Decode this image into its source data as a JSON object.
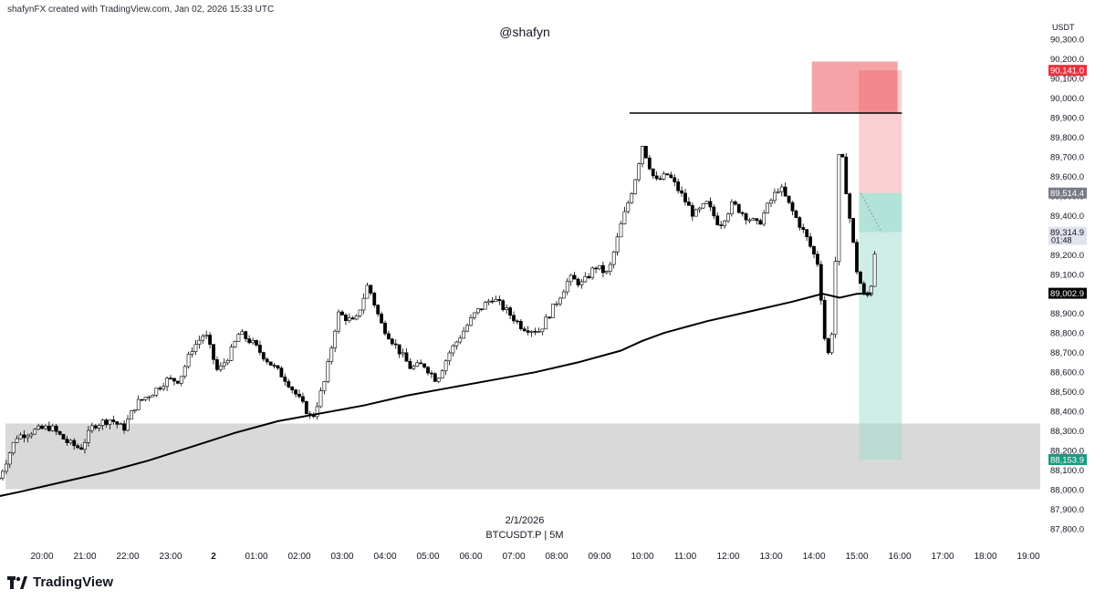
{
  "header": {
    "created_by": "shafynFX created with TradingView.com, Jan 02, 2026 15:33 UTC",
    "watermark": "@shafyn",
    "date_label": "2/1/2026",
    "symbol_label": "BTCUSDT.P | 5M",
    "brand": "TradingView",
    "unit": "USDT"
  },
  "colors": {
    "up": "#ffffff",
    "down": "#000000",
    "wick": "#000000",
    "ma": "#000000",
    "zone": "#d9d9d9",
    "stop_zone": "#f5a0aa",
    "target_zone": "#9fdccf",
    "label_red": "#e8323c",
    "label_gray": "#787b86",
    "label_green": "#1d9a80"
  },
  "chart_data": {
    "type": "candlestick",
    "symbol": "BTCUSDT.P",
    "timeframe": "5M",
    "y_ticks": [
      90300,
      90200,
      90100,
      90000,
      89900,
      89800,
      89700,
      89600,
      89500,
      89400,
      89300,
      89200,
      89100,
      89000,
      88900,
      88800,
      88700,
      88600,
      88500,
      88400,
      88300,
      88200,
      88100,
      88000,
      87900,
      87800
    ],
    "y_tick_labels": [
      "90,300.0",
      "90,200.0",
      "90,100.0",
      "90,000.0",
      "89,900.0",
      "89,800.0",
      "89,700.0",
      "89,600.0",
      "89,500.0",
      "89,400.0",
      "89,300.0",
      "89,200.0",
      "89,100.0",
      "89,000.0",
      "88,900.0",
      "88,800.0",
      "88,700.0",
      "88,600.0",
      "88,500.0",
      "88,400.0",
      "88,300.0",
      "88,200.0",
      "88,100.0",
      "88,000.0",
      "87,900.0",
      "87,800.0"
    ],
    "x_ticks": [
      "20:00",
      "21:00",
      "22:00",
      "23:00",
      "2",
      "01:00",
      "02:00",
      "03:00",
      "04:00",
      "05:00",
      "06:00",
      "07:00",
      "08:00",
      "09:00",
      "10:00",
      "11:00",
      "12:00",
      "13:00",
      "14:00",
      "15:00",
      "16:00",
      "17:00",
      "18:00",
      "19:00"
    ],
    "hour_anchors": [
      {
        "h": 19.0,
        "p": 88060
      },
      {
        "h": 19.4,
        "p": 88270
      },
      {
        "h": 19.8,
        "p": 88300
      },
      {
        "h": 20.2,
        "p": 88320
      },
      {
        "h": 20.6,
        "p": 88240
      },
      {
        "h": 20.9,
        "p": 88210
      },
      {
        "h": 21.2,
        "p": 88330
      },
      {
        "h": 21.6,
        "p": 88360
      },
      {
        "h": 21.9,
        "p": 88310
      },
      {
        "h": 22.2,
        "p": 88440
      },
      {
        "h": 22.6,
        "p": 88500
      },
      {
        "h": 22.9,
        "p": 88560
      },
      {
        "h": 23.2,
        "p": 88560
      },
      {
        "h": 23.5,
        "p": 88720
      },
      {
        "h": 23.8,
        "p": 88800
      },
      {
        "h": 24.1,
        "p": 88600
      },
      {
        "h": 24.4,
        "p": 88700
      },
      {
        "h": 24.6,
        "p": 88800
      },
      {
        "h": 24.9,
        "p": 88750
      },
      {
        "h": 25.3,
        "p": 88650
      },
      {
        "h": 25.7,
        "p": 88560
      },
      {
        "h": 26.0,
        "p": 88460
      },
      {
        "h": 26.3,
        "p": 88360
      },
      {
        "h": 26.6,
        "p": 88560
      },
      {
        "h": 26.9,
        "p": 88900
      },
      {
        "h": 27.3,
        "p": 88850
      },
      {
        "h": 27.6,
        "p": 89050
      },
      {
        "h": 27.9,
        "p": 88850
      },
      {
        "h": 28.2,
        "p": 88750
      },
      {
        "h": 28.6,
        "p": 88620
      },
      {
        "h": 28.9,
        "p": 88640
      },
      {
        "h": 29.2,
        "p": 88560
      },
      {
        "h": 29.5,
        "p": 88700
      },
      {
        "h": 29.8,
        "p": 88800
      },
      {
        "h": 30.1,
        "p": 88900
      },
      {
        "h": 30.5,
        "p": 88980
      },
      {
        "h": 30.8,
        "p": 88920
      },
      {
        "h": 31.2,
        "p": 88830
      },
      {
        "h": 31.6,
        "p": 88810
      },
      {
        "h": 32.0,
        "p": 88960
      },
      {
        "h": 32.3,
        "p": 89080
      },
      {
        "h": 32.6,
        "p": 89050
      },
      {
        "h": 32.9,
        "p": 89140
      },
      {
        "h": 33.2,
        "p": 89100
      },
      {
        "h": 33.5,
        "p": 89350
      },
      {
        "h": 33.8,
        "p": 89560
      },
      {
        "h": 34.0,
        "p": 89760
      },
      {
        "h": 34.3,
        "p": 89570
      },
      {
        "h": 34.6,
        "p": 89610
      },
      {
        "h": 34.9,
        "p": 89510
      },
      {
        "h": 35.2,
        "p": 89400
      },
      {
        "h": 35.5,
        "p": 89460
      },
      {
        "h": 35.8,
        "p": 89350
      },
      {
        "h": 36.1,
        "p": 89460
      },
      {
        "h": 36.4,
        "p": 89400
      },
      {
        "h": 36.7,
        "p": 89350
      },
      {
        "h": 36.9,
        "p": 89440
      },
      {
        "h": 37.2,
        "p": 89550
      },
      {
        "h": 37.5,
        "p": 89420
      },
      {
        "h": 37.8,
        "p": 89300
      },
      {
        "h": 38.1,
        "p": 89150
      },
      {
        "h": 38.3,
        "p": 88650
      },
      {
        "h": 38.45,
        "p": 88850
      },
      {
        "h": 38.6,
        "p": 89800
      },
      {
        "h": 38.8,
        "p": 89440
      },
      {
        "h": 39.0,
        "p": 89120
      },
      {
        "h": 39.2,
        "p": 88960
      },
      {
        "h": 39.35,
        "p": 89060
      },
      {
        "h": 39.45,
        "p": 89290
      }
    ],
    "ma_points": [
      {
        "h": 18.2,
        "p": 87930
      },
      {
        "h": 19.5,
        "p": 87990
      },
      {
        "h": 20.5,
        "p": 88040
      },
      {
        "h": 21.5,
        "p": 88090
      },
      {
        "h": 22.5,
        "p": 88150
      },
      {
        "h": 23.5,
        "p": 88220
      },
      {
        "h": 24.5,
        "p": 88290
      },
      {
        "h": 25.5,
        "p": 88350
      },
      {
        "h": 26.5,
        "p": 88390
      },
      {
        "h": 27.5,
        "p": 88430
      },
      {
        "h": 28.5,
        "p": 88480
      },
      {
        "h": 29.5,
        "p": 88520
      },
      {
        "h": 30.5,
        "p": 88560
      },
      {
        "h": 31.5,
        "p": 88600
      },
      {
        "h": 32.5,
        "p": 88650
      },
      {
        "h": 33.5,
        "p": 88710
      },
      {
        "h": 34.0,
        "p": 88760
      },
      {
        "h": 34.5,
        "p": 88800
      },
      {
        "h": 35.5,
        "p": 88860
      },
      {
        "h": 36.5,
        "p": 88910
      },
      {
        "h": 37.5,
        "p": 88960
      },
      {
        "h": 38.2,
        "p": 89000
      },
      {
        "h": 38.6,
        "p": 88980
      },
      {
        "h": 39.0,
        "p": 89000
      },
      {
        "h": 39.35,
        "p": 89003
      }
    ],
    "demand_zone": {
      "from": 88002,
      "to": 88338
    },
    "high_level": {
      "price": 89923,
      "from_h": 33.7,
      "to_h": 40.05
    },
    "position": {
      "entry": 89514.4,
      "stop": 90141.0,
      "target": 88153.9,
      "current": 89314.9,
      "from_h": 39.05,
      "to_h": 40.05,
      "stop_highlight_from_h": 37.95,
      "stop_highlight_bottom": 89923
    },
    "price_labels": [
      {
        "value": "90,141.0",
        "price": 90141.0,
        "color": "label_red"
      },
      {
        "value": "89,514.4",
        "price": 89514.4,
        "color": "label_gray"
      },
      {
        "value": "89,314.9",
        "sub": "01:48",
        "price": 89314.9,
        "color": "current"
      },
      {
        "value": "89,002.9",
        "price": 89002.9,
        "color": "ma"
      },
      {
        "value": "88,153.9",
        "price": 88153.9,
        "color": "label_green"
      }
    ]
  }
}
